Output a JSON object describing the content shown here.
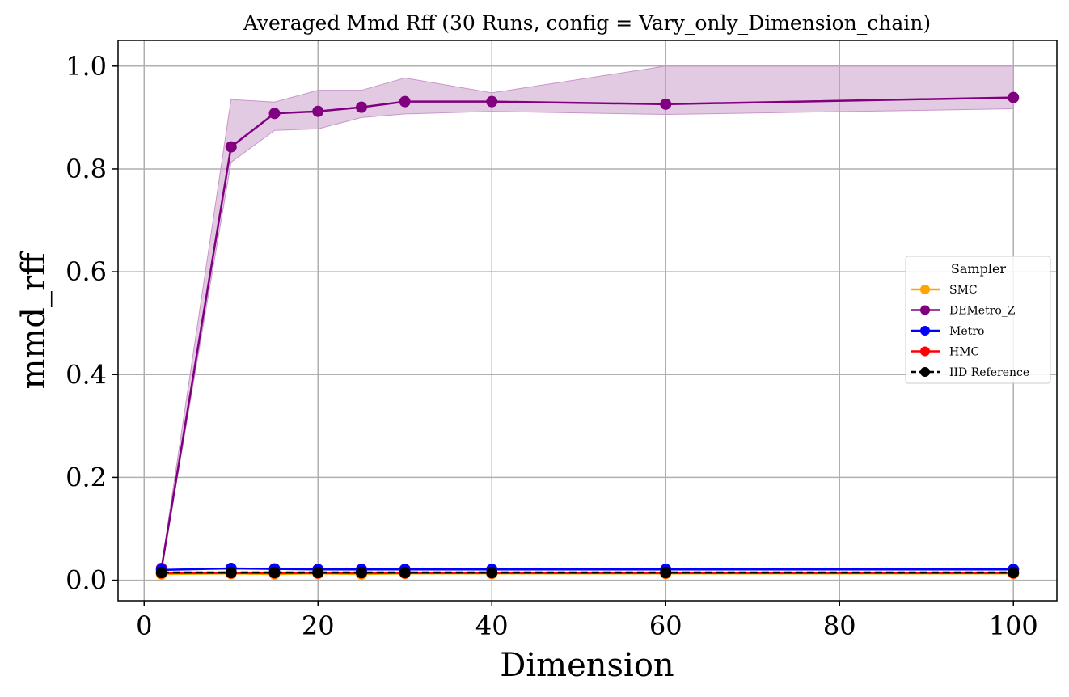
{
  "chart_data": {
    "type": "line",
    "title": "Averaged Mmd Rff (30 Runs, config = Vary_only_Dimension_chain)",
    "xlabel": "Dimension",
    "ylabel": "mmd_rff",
    "xlim": [
      -3,
      105
    ],
    "ylim": [
      -0.04,
      1.05
    ],
    "xticks": [
      0,
      20,
      40,
      60,
      80,
      100
    ],
    "yticks": [
      0.0,
      0.2,
      0.4,
      0.6,
      0.8,
      1.0
    ],
    "xtick_labels": [
      "0",
      "20",
      "40",
      "60",
      "80",
      "100"
    ],
    "ytick_labels": [
      "0.0",
      "0.2",
      "0.4",
      "0.6",
      "0.8",
      "1.0"
    ],
    "grid": true,
    "legend": {
      "title": "Sampler",
      "placement": "center-right"
    },
    "x": [
      2,
      10,
      15,
      20,
      25,
      30,
      40,
      60,
      100
    ],
    "series": [
      {
        "name": "SMC",
        "color": "#ffa500",
        "dashed": false,
        "values": [
          0.012,
          0.013,
          0.012,
          0.013,
          0.012,
          0.013,
          0.013,
          0.013,
          0.013
        ]
      },
      {
        "name": "DEMetro_Z",
        "color": "#800080",
        "dashed": false,
        "values": [
          0.023,
          0.843,
          0.908,
          0.912,
          0.92,
          0.931,
          0.931,
          0.926,
          0.939
        ],
        "band_lower": [
          0.02,
          0.813,
          0.875,
          0.878,
          0.9,
          0.907,
          0.912,
          0.906,
          0.917
        ],
        "band_upper": [
          0.027,
          0.935,
          0.93,
          0.953,
          0.953,
          0.977,
          0.948,
          1.0,
          1.0
        ],
        "band_color": "#c896c8"
      },
      {
        "name": "Metro",
        "color": "#0000ff",
        "dashed": false,
        "values": [
          0.02,
          0.023,
          0.022,
          0.021,
          0.021,
          0.021,
          0.021,
          0.021,
          0.021
        ]
      },
      {
        "name": "HMC",
        "color": "#ff0000",
        "dashed": false,
        "values": [
          0.014,
          0.014,
          0.014,
          0.014,
          0.014,
          0.014,
          0.014,
          0.014,
          0.014
        ]
      },
      {
        "name": "IID Reference",
        "color": "#000000",
        "dashed": true,
        "values": [
          0.015,
          0.015,
          0.015,
          0.015,
          0.015,
          0.015,
          0.015,
          0.015,
          0.015
        ]
      }
    ]
  }
}
